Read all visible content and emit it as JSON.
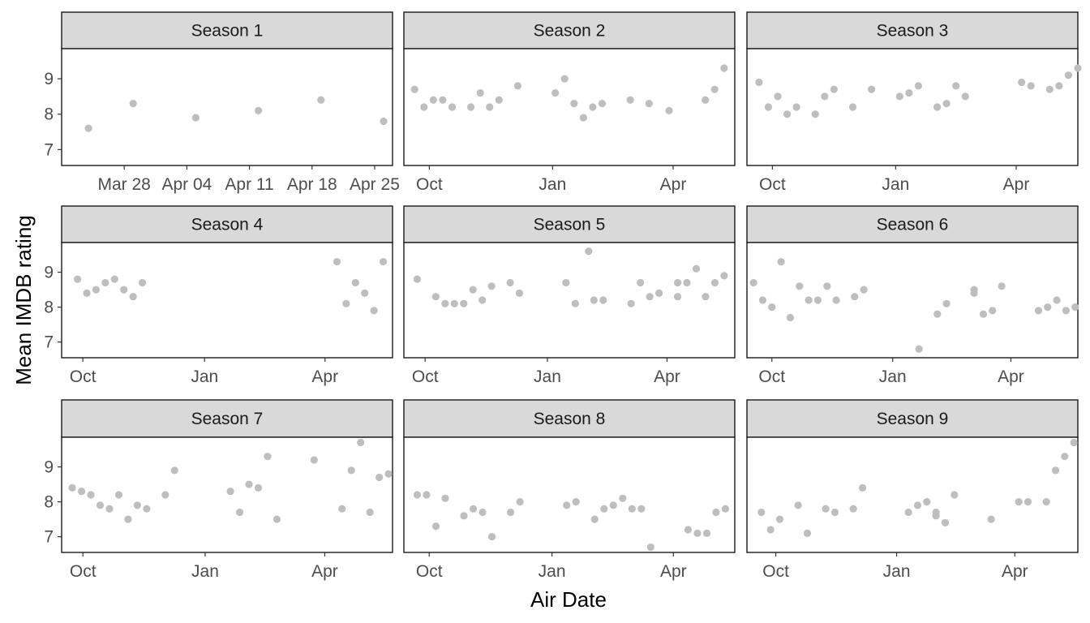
{
  "chart_data": {
    "type": "scatter",
    "xlabel": "Air Date",
    "ylabel": "Mean IMDB rating",
    "ylim": [
      6.55,
      9.85
    ],
    "yticks": [
      7,
      8,
      9
    ],
    "colors": {
      "point": "#bebebe",
      "strip": "#d9d9d9",
      "panel_border": "#1a1a1a"
    },
    "grid": false,
    "panels": [
      {
        "title": "Season 1",
        "xlim": [
          "2005-03-21",
          "2005-04-27"
        ],
        "xticks": [
          {
            "date": "2005-03-28",
            "label": "Mar 28"
          },
          {
            "date": "2005-04-04",
            "label": "Apr 04"
          },
          {
            "date": "2005-04-11",
            "label": "Apr 11"
          },
          {
            "date": "2005-04-18",
            "label": "Apr 18"
          },
          {
            "date": "2005-04-25",
            "label": "Apr 25"
          }
        ],
        "points": [
          {
            "x": "2005-03-24",
            "y": 7.6
          },
          {
            "x": "2005-03-29",
            "y": 8.3
          },
          {
            "x": "2005-04-05",
            "y": 7.9
          },
          {
            "x": "2005-04-12",
            "y": 8.1
          },
          {
            "x": "2005-04-19",
            "y": 8.4
          },
          {
            "x": "2005-04-26",
            "y": 7.8
          }
        ]
      },
      {
        "title": "Season 2",
        "xlim": [
          "2005-09-12",
          "2006-05-17"
        ],
        "xticks": [
          {
            "date": "2005-10-01",
            "label": "Oct"
          },
          {
            "date": "2006-01-01",
            "label": "Jan"
          },
          {
            "date": "2006-04-01",
            "label": "Apr"
          }
        ],
        "points": [
          {
            "x": "2005-09-20",
            "y": 8.7
          },
          {
            "x": "2005-09-27",
            "y": 8.2
          },
          {
            "x": "2005-10-04",
            "y": 8.4
          },
          {
            "x": "2005-10-11",
            "y": 8.4
          },
          {
            "x": "2005-10-18",
            "y": 8.2
          },
          {
            "x": "2005-11-01",
            "y": 8.2
          },
          {
            "x": "2005-11-08",
            "y": 8.6
          },
          {
            "x": "2005-11-15",
            "y": 8.2
          },
          {
            "x": "2005-11-22",
            "y": 8.4
          },
          {
            "x": "2005-12-06",
            "y": 8.8
          },
          {
            "x": "2006-01-03",
            "y": 8.6
          },
          {
            "x": "2006-01-10",
            "y": 9.0
          },
          {
            "x": "2006-01-17",
            "y": 8.3
          },
          {
            "x": "2006-01-24",
            "y": 7.9
          },
          {
            "x": "2006-01-31",
            "y": 8.2
          },
          {
            "x": "2006-02-07",
            "y": 8.3
          },
          {
            "x": "2006-02-28",
            "y": 8.4
          },
          {
            "x": "2006-03-14",
            "y": 8.3
          },
          {
            "x": "2006-03-29",
            "y": 8.1
          },
          {
            "x": "2006-04-25",
            "y": 8.4
          },
          {
            "x": "2006-05-02",
            "y": 8.7
          },
          {
            "x": "2006-05-09",
            "y": 9.3
          }
        ]
      },
      {
        "title": "Season 3",
        "xlim": [
          "2006-09-12",
          "2007-05-17"
        ],
        "xticks": [
          {
            "date": "2006-10-01",
            "label": "Oct"
          },
          {
            "date": "2007-01-01",
            "label": "Jan"
          },
          {
            "date": "2007-04-01",
            "label": "Apr"
          }
        ],
        "points": [
          {
            "x": "2006-09-21",
            "y": 8.9
          },
          {
            "x": "2006-09-28",
            "y": 8.2
          },
          {
            "x": "2006-10-05",
            "y": 8.5
          },
          {
            "x": "2006-10-12",
            "y": 8.0
          },
          {
            "x": "2006-10-19",
            "y": 8.2
          },
          {
            "x": "2006-11-02",
            "y": 8.0
          },
          {
            "x": "2006-11-09",
            "y": 8.5
          },
          {
            "x": "2006-11-16",
            "y": 8.7
          },
          {
            "x": "2006-11-30",
            "y": 8.2
          },
          {
            "x": "2006-12-14",
            "y": 8.7
          },
          {
            "x": "2007-01-04",
            "y": 8.5
          },
          {
            "x": "2007-01-11",
            "y": 8.6
          },
          {
            "x": "2007-01-18",
            "y": 8.8
          },
          {
            "x": "2007-02-01",
            "y": 8.2
          },
          {
            "x": "2007-02-08",
            "y": 8.3
          },
          {
            "x": "2007-02-15",
            "y": 8.8
          },
          {
            "x": "2007-02-22",
            "y": 8.5
          },
          {
            "x": "2007-04-05",
            "y": 8.9
          },
          {
            "x": "2007-04-12",
            "y": 8.8
          },
          {
            "x": "2007-04-26",
            "y": 8.7
          },
          {
            "x": "2007-05-03",
            "y": 8.8
          },
          {
            "x": "2007-05-10",
            "y": 9.1
          },
          {
            "x": "2007-05-17",
            "y": 9.3
          }
        ]
      },
      {
        "title": "Season 4",
        "xlim": [
          "2007-09-15",
          "2008-05-22"
        ],
        "xticks": [
          {
            "date": "2007-10-01",
            "label": "Oct"
          },
          {
            "date": "2008-01-01",
            "label": "Jan"
          },
          {
            "date": "2008-04-01",
            "label": "Apr"
          }
        ],
        "points": [
          {
            "x": "2007-09-27",
            "y": 8.8
          },
          {
            "x": "2007-10-04",
            "y": 8.4
          },
          {
            "x": "2007-10-11",
            "y": 8.5
          },
          {
            "x": "2007-10-18",
            "y": 8.7
          },
          {
            "x": "2007-10-25",
            "y": 8.8
          },
          {
            "x": "2007-11-01",
            "y": 8.5
          },
          {
            "x": "2007-11-08",
            "y": 8.3
          },
          {
            "x": "2007-11-15",
            "y": 8.7
          },
          {
            "x": "2008-04-10",
            "y": 9.3
          },
          {
            "x": "2008-04-17",
            "y": 8.1
          },
          {
            "x": "2008-04-24",
            "y": 8.7
          },
          {
            "x": "2008-05-01",
            "y": 8.4
          },
          {
            "x": "2008-05-08",
            "y": 7.9
          },
          {
            "x": "2008-05-15",
            "y": 9.3
          }
        ]
      },
      {
        "title": "Season 5",
        "xlim": [
          "2008-09-15",
          "2009-05-22"
        ],
        "xticks": [
          {
            "date": "2008-10-01",
            "label": "Oct"
          },
          {
            "date": "2009-01-01",
            "label": "Jan"
          },
          {
            "date": "2009-04-01",
            "label": "Apr"
          }
        ],
        "points": [
          {
            "x": "2008-09-25",
            "y": 8.8
          },
          {
            "x": "2008-10-09",
            "y": 8.3
          },
          {
            "x": "2008-10-16",
            "y": 8.1
          },
          {
            "x": "2008-10-23",
            "y": 8.1
          },
          {
            "x": "2008-10-30",
            "y": 8.1
          },
          {
            "x": "2008-11-06",
            "y": 8.5
          },
          {
            "x": "2008-11-13",
            "y": 8.2
          },
          {
            "x": "2008-11-20",
            "y": 8.6
          },
          {
            "x": "2008-12-04",
            "y": 8.7
          },
          {
            "x": "2008-12-11",
            "y": 8.4
          },
          {
            "x": "2009-01-15",
            "y": 8.7
          },
          {
            "x": "2009-01-22",
            "y": 8.1
          },
          {
            "x": "2009-02-01",
            "y": 9.6
          },
          {
            "x": "2009-02-05",
            "y": 8.2
          },
          {
            "x": "2009-02-12",
            "y": 8.2
          },
          {
            "x": "2009-03-05",
            "y": 8.1
          },
          {
            "x": "2009-03-12",
            "y": 8.7
          },
          {
            "x": "2009-03-19",
            "y": 8.3
          },
          {
            "x": "2009-03-26",
            "y": 8.4
          },
          {
            "x": "2009-04-09",
            "y": 8.7
          },
          {
            "x": "2009-04-09",
            "y": 8.3
          },
          {
            "x": "2009-04-16",
            "y": 8.7
          },
          {
            "x": "2009-04-23",
            "y": 9.1
          },
          {
            "x": "2009-04-30",
            "y": 8.3
          },
          {
            "x": "2009-05-07",
            "y": 8.7
          },
          {
            "x": "2009-05-14",
            "y": 8.9
          }
        ]
      },
      {
        "title": "Season 6",
        "xlim": [
          "2009-09-12",
          "2010-05-22"
        ],
        "xticks": [
          {
            "date": "2009-10-01",
            "label": "Oct"
          },
          {
            "date": "2010-01-01",
            "label": "Jan"
          },
          {
            "date": "2010-04-01",
            "label": "Apr"
          }
        ],
        "points": [
          {
            "x": "2009-09-17",
            "y": 8.7
          },
          {
            "x": "2009-09-24",
            "y": 8.2
          },
          {
            "x": "2009-10-01",
            "y": 8.0
          },
          {
            "x": "2009-10-08",
            "y": 9.3
          },
          {
            "x": "2009-10-15",
            "y": 7.7
          },
          {
            "x": "2009-10-22",
            "y": 8.6
          },
          {
            "x": "2009-10-29",
            "y": 8.2
          },
          {
            "x": "2009-11-05",
            "y": 8.2
          },
          {
            "x": "2009-11-12",
            "y": 8.6
          },
          {
            "x": "2009-11-19",
            "y": 8.2
          },
          {
            "x": "2009-12-03",
            "y": 8.3
          },
          {
            "x": "2009-12-10",
            "y": 8.5
          },
          {
            "x": "2010-01-21",
            "y": 6.8
          },
          {
            "x": "2010-02-04",
            "y": 7.8
          },
          {
            "x": "2010-02-11",
            "y": 8.1
          },
          {
            "x": "2010-03-04",
            "y": 8.4
          },
          {
            "x": "2010-03-04",
            "y": 8.5
          },
          {
            "x": "2010-03-11",
            "y": 7.8
          },
          {
            "x": "2010-03-18",
            "y": 7.9
          },
          {
            "x": "2010-03-25",
            "y": 8.6
          },
          {
            "x": "2010-04-22",
            "y": 7.9
          },
          {
            "x": "2010-04-29",
            "y": 8.0
          },
          {
            "x": "2010-05-06",
            "y": 8.2
          },
          {
            "x": "2010-05-13",
            "y": 7.9
          },
          {
            "x": "2010-05-20",
            "y": 8.0
          }
        ]
      },
      {
        "title": "Season 7",
        "xlim": [
          "2010-09-15",
          "2011-05-22"
        ],
        "xticks": [
          {
            "date": "2010-10-01",
            "label": "Oct"
          },
          {
            "date": "2011-01-01",
            "label": "Jan"
          },
          {
            "date": "2011-04-01",
            "label": "Apr"
          }
        ],
        "points": [
          {
            "x": "2010-09-23",
            "y": 8.4
          },
          {
            "x": "2010-09-30",
            "y": 8.3
          },
          {
            "x": "2010-10-07",
            "y": 8.2
          },
          {
            "x": "2010-10-14",
            "y": 7.9
          },
          {
            "x": "2010-10-21",
            "y": 7.8
          },
          {
            "x": "2010-10-28",
            "y": 8.2
          },
          {
            "x": "2010-11-04",
            "y": 7.5
          },
          {
            "x": "2010-11-11",
            "y": 7.9
          },
          {
            "x": "2010-11-18",
            "y": 7.8
          },
          {
            "x": "2010-12-02",
            "y": 8.2
          },
          {
            "x": "2010-12-09",
            "y": 8.9
          },
          {
            "x": "2011-01-20",
            "y": 8.3
          },
          {
            "x": "2011-01-27",
            "y": 7.7
          },
          {
            "x": "2011-02-03",
            "y": 8.5
          },
          {
            "x": "2011-02-10",
            "y": 8.4
          },
          {
            "x": "2011-02-17",
            "y": 9.3
          },
          {
            "x": "2011-02-24",
            "y": 7.5
          },
          {
            "x": "2011-03-24",
            "y": 9.2
          },
          {
            "x": "2011-04-14",
            "y": 7.8
          },
          {
            "x": "2011-04-21",
            "y": 8.9
          },
          {
            "x": "2011-04-28",
            "y": 9.7
          },
          {
            "x": "2011-05-05",
            "y": 7.7
          },
          {
            "x": "2011-05-12",
            "y": 8.7
          },
          {
            "x": "2011-05-19",
            "y": 8.8
          }
        ]
      },
      {
        "title": "Season 8",
        "xlim": [
          "2011-09-12",
          "2012-05-17"
        ],
        "xticks": [
          {
            "date": "2011-10-01",
            "label": "Oct"
          },
          {
            "date": "2012-01-01",
            "label": "Jan"
          },
          {
            "date": "2012-04-01",
            "label": "Apr"
          }
        ],
        "points": [
          {
            "x": "2011-09-22",
            "y": 8.2
          },
          {
            "x": "2011-09-29",
            "y": 8.2
          },
          {
            "x": "2011-10-06",
            "y": 7.3
          },
          {
            "x": "2011-10-13",
            "y": 8.1
          },
          {
            "x": "2011-10-27",
            "y": 7.6
          },
          {
            "x": "2011-11-03",
            "y": 7.8
          },
          {
            "x": "2011-11-10",
            "y": 7.7
          },
          {
            "x": "2011-11-17",
            "y": 7.0
          },
          {
            "x": "2011-12-01",
            "y": 7.7
          },
          {
            "x": "2011-12-08",
            "y": 8.0
          },
          {
            "x": "2012-01-12",
            "y": 7.9
          },
          {
            "x": "2012-01-19",
            "y": 8.0
          },
          {
            "x": "2012-02-02",
            "y": 7.5
          },
          {
            "x": "2012-02-09",
            "y": 7.8
          },
          {
            "x": "2012-02-16",
            "y": 7.9
          },
          {
            "x": "2012-02-23",
            "y": 8.1
          },
          {
            "x": "2012-03-01",
            "y": 7.8
          },
          {
            "x": "2012-03-08",
            "y": 7.8
          },
          {
            "x": "2012-03-15",
            "y": 6.7
          },
          {
            "x": "2012-04-12",
            "y": 7.2
          },
          {
            "x": "2012-04-19",
            "y": 7.1
          },
          {
            "x": "2012-04-26",
            "y": 7.1
          },
          {
            "x": "2012-05-03",
            "y": 7.7
          },
          {
            "x": "2012-05-10",
            "y": 7.8
          }
        ]
      },
      {
        "title": "Season 9",
        "xlim": [
          "2012-09-09",
          "2013-05-19"
        ],
        "xticks": [
          {
            "date": "2012-10-01",
            "label": "Oct"
          },
          {
            "date": "2013-01-01",
            "label": "Jan"
          },
          {
            "date": "2013-04-01",
            "label": "Apr"
          }
        ],
        "points": [
          {
            "x": "2012-09-20",
            "y": 7.7
          },
          {
            "x": "2012-09-27",
            "y": 7.2
          },
          {
            "x": "2012-10-04",
            "y": 7.5
          },
          {
            "x": "2012-10-18",
            "y": 7.9
          },
          {
            "x": "2012-10-25",
            "y": 7.1
          },
          {
            "x": "2012-11-08",
            "y": 7.8
          },
          {
            "x": "2012-11-15",
            "y": 7.7
          },
          {
            "x": "2012-11-29",
            "y": 7.8
          },
          {
            "x": "2012-12-06",
            "y": 8.4
          },
          {
            "x": "2013-01-10",
            "y": 7.7
          },
          {
            "x": "2013-01-17",
            "y": 7.9
          },
          {
            "x": "2013-01-24",
            "y": 8.0
          },
          {
            "x": "2013-01-31",
            "y": 7.7
          },
          {
            "x": "2013-01-31",
            "y": 7.6
          },
          {
            "x": "2013-02-07",
            "y": 7.4
          },
          {
            "x": "2013-02-14",
            "y": 8.2
          },
          {
            "x": "2013-03-14",
            "y": 7.5
          },
          {
            "x": "2013-04-04",
            "y": 8.0
          },
          {
            "x": "2013-04-11",
            "y": 8.0
          },
          {
            "x": "2013-04-25",
            "y": 8.0
          },
          {
            "x": "2013-05-02",
            "y": 8.9
          },
          {
            "x": "2013-05-09",
            "y": 9.3
          },
          {
            "x": "2013-05-16",
            "y": 9.7
          }
        ]
      }
    ]
  }
}
